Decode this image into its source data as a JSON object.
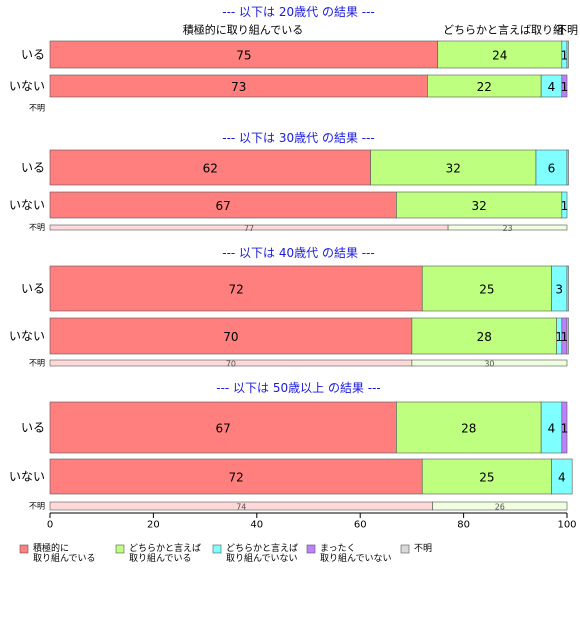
{
  "chart_data": {
    "type": "bar",
    "orientation": "horizontal-stacked-100",
    "xlim": [
      0,
      100
    ],
    "x_ticks": [
      "0",
      "20",
      "40",
      "60",
      "80",
      "100"
    ],
    "categories": [
      {
        "id": "c1",
        "label_lines": [
          "積極的に",
          "取り組んでいる"
        ],
        "color": "#ff7f7f"
      },
      {
        "id": "c2",
        "label_lines": [
          "どちらかと言えば",
          "取り組んでいる"
        ],
        "color": "#bfff7f"
      },
      {
        "id": "c3",
        "label_lines": [
          "どちらかと言えば",
          "取り組んでいない"
        ],
        "color": "#7fffff"
      },
      {
        "id": "c4",
        "label_lines": [
          "まったく",
          "取り組んでいない"
        ],
        "color": "#bf7fff"
      },
      {
        "id": "c5",
        "label_lines": [
          "不明"
        ],
        "color": "#d9d9d9"
      }
    ],
    "top_labels": [
      "積極的に取り組んでいる",
      "どちらかと言えば取り組",
      "不明"
    ],
    "panels": [
      {
        "title": "--- 以下は 20歳代 の結果 ---",
        "rows": [
          {
            "label": "いる",
            "values": [
              75,
              24,
              1,
              0,
              0.3
            ],
            "labels": [
              "75",
              "24",
              "1",
              "",
              ""
            ]
          },
          {
            "label": "いない",
            "values": [
              73,
              22,
              4,
              1,
              0
            ],
            "labels": [
              "73",
              "22",
              "4",
              "1",
              ""
            ]
          },
          {
            "label": "不明",
            "values": [],
            "labels": []
          }
        ]
      },
      {
        "title": "--- 以下は 30歳代 の結果 ---",
        "rows": [
          {
            "label": "いる",
            "values": [
              62,
              32,
              6,
              0,
              0.3
            ],
            "labels": [
              "62",
              "32",
              "6",
              "",
              ""
            ]
          },
          {
            "label": "いない",
            "values": [
              67,
              32,
              1,
              0,
              0
            ],
            "labels": [
              "67",
              "32",
              "1",
              "",
              ""
            ]
          },
          {
            "label": "不明",
            "values": [
              77,
              23,
              0,
              0,
              0
            ],
            "labels": [
              "77",
              "23",
              "",
              "",
              ""
            ]
          }
        ]
      },
      {
        "title": "--- 以下は 40歳代 の結果 ---",
        "rows": [
          {
            "label": "いる",
            "values": [
              72,
              25,
              3,
              0,
              0.3
            ],
            "labels": [
              "72",
              "25",
              "3",
              "",
              ""
            ]
          },
          {
            "label": "いない",
            "values": [
              70,
              28,
              1,
              1,
              0.3
            ],
            "labels": [
              "70",
              "28",
              "1",
              "1",
              ""
            ]
          },
          {
            "label": "不明",
            "values": [
              70,
              30,
              0,
              0,
              0
            ],
            "labels": [
              "70",
              "30",
              "",
              "",
              ""
            ]
          }
        ]
      },
      {
        "title": "--- 以下は 50歳以上 の結果 ---",
        "rows": [
          {
            "label": "いる",
            "values": [
              67,
              28,
              4,
              1,
              0
            ],
            "labels": [
              "67",
              "28",
              "4",
              "1",
              ""
            ]
          },
          {
            "label": "いない",
            "values": [
              72,
              25,
              4,
              0,
              0
            ],
            "labels": [
              "72",
              "25",
              "4",
              "",
              ""
            ]
          },
          {
            "label": "不明",
            "values": [
              74,
              26,
              0,
              0,
              0
            ],
            "labels": [
              "74",
              "26",
              "",
              "",
              ""
            ]
          }
        ]
      }
    ]
  }
}
